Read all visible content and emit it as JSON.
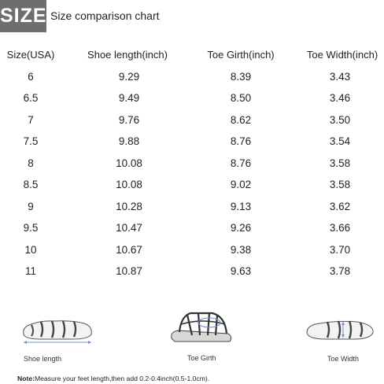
{
  "header": {
    "badge": "SIZE",
    "subtitle": "Size comparison chart"
  },
  "table": {
    "columns": [
      "Size(USA)",
      "Shoe length(inch)",
      "Toe Girth(inch)",
      "Toe Width(inch)"
    ],
    "rows": [
      [
        "6",
        "9.29",
        "8.39",
        "3.43"
      ],
      [
        "6.5",
        "9.49",
        "8.50",
        "3.46"
      ],
      [
        "7",
        "9.76",
        "8.62",
        "3.50"
      ],
      [
        "7.5",
        "9.88",
        "8.76",
        "3.54"
      ],
      [
        "8",
        "10.08",
        "8.76",
        "3.58"
      ],
      [
        "8.5",
        "10.08",
        "9.02",
        "3.58"
      ],
      [
        "9",
        "10.28",
        "9.13",
        "3.62"
      ],
      [
        "9.5",
        "10.47",
        "9.26",
        "3.66"
      ],
      [
        "10",
        "10.67",
        "9.38",
        "3.70"
      ],
      [
        "11",
        "10.87",
        "9.63",
        "3.78"
      ]
    ]
  },
  "illustrations": [
    {
      "label": "Shoe  length",
      "icon": "sandal-side-view-icon"
    },
    {
      "label": "Toe Girth",
      "icon": "sandal-girth-view-icon"
    },
    {
      "label": "Toe Width",
      "icon": "sandal-width-view-icon"
    }
  ],
  "note": {
    "prefix": "Note:",
    "text": "Measure your feet length,then add 0.2-0.4inch(0.5-1.0cm)."
  },
  "colors": {
    "badge_bg": "#6e6e6e",
    "measure_arrow": "#6f8fc9"
  }
}
